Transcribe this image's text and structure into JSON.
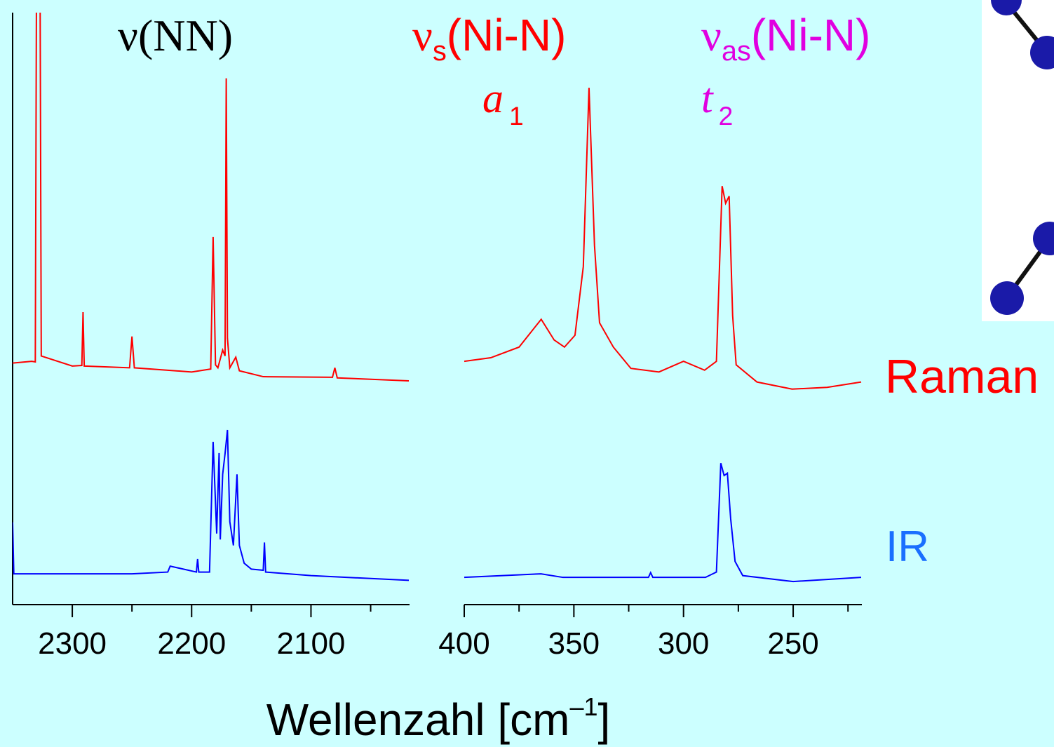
{
  "chart_data": [
    {
      "type": "line",
      "xlabel": {
        "text": "Wellenzahl [cm",
        "sup": "–1",
        "tail": "]"
      },
      "annotations": [
        {
          "text": "ν(NN)",
          "color": "#000000"
        },
        {
          "text": "ν",
          "sub": "s",
          "tail": "(Ni-N)",
          "color": "#ff0000"
        },
        {
          "text": "ν",
          "sub": "as",
          "tail": "(Ni-N)",
          "color": "#e000e0"
        },
        {
          "text": "a",
          "sub": "1",
          "color": "#ff0000"
        },
        {
          "text": "t",
          "sub": "2",
          "color": "#e000e0"
        }
      ],
      "xlim": [
        2350,
        2018
      ],
      "ylim": [
        0,
        100
      ],
      "xticks": [
        2300,
        2200,
        2100
      ],
      "xminor": [
        2250,
        2150,
        2050
      ],
      "series": [
        {
          "name": "Raman",
          "color": "#ff0000",
          "x": [
            2350,
            2334,
            2331,
            2330,
            2327,
            2326,
            2300,
            2292,
            2291,
            2290,
            2252,
            2250,
            2248,
            2200,
            2184,
            2182,
            2180,
            2178,
            2174,
            2172,
            2171,
            2170,
            2168,
            2163,
            2160,
            2140,
            2082,
            2080,
            2078,
            2018
          ],
          "values": [
            40.8,
            41.1,
            41,
            105,
            105,
            42,
            40.3,
            40.4,
            49.4,
            40.3,
            40,
            45.3,
            40,
            39.3,
            39.8,
            62.1,
            40.5,
            40,
            43,
            42,
            88.9,
            45,
            40,
            41.8,
            39.5,
            38.5,
            38.4,
            40,
            38.3,
            37.8
          ]
        },
        {
          "name": "IR",
          "color": "#0000ff",
          "x": [
            2350,
            2349,
            2300,
            2250,
            2220,
            2218,
            2196,
            2195,
            2194,
            2185,
            2182,
            2179,
            2177,
            2176,
            2174,
            2172,
            2170,
            2168,
            2165,
            2162,
            2160,
            2156,
            2150,
            2140,
            2139,
            2138,
            2100,
            2018
          ],
          "values": [
            13.9,
            5.2,
            5.2,
            5.2,
            5.5,
            6.5,
            5.5,
            7.7,
            5.5,
            5.5,
            27.5,
            12,
            25.6,
            11,
            22,
            25.5,
            29.5,
            14,
            10,
            22,
            10,
            7,
            6,
            5.8,
            10.5,
            5.5,
            4.9,
            4.1
          ]
        }
      ]
    },
    {
      "type": "line",
      "xlim": [
        400,
        219
      ],
      "ylim": [
        0,
        100
      ],
      "xticks": [
        400,
        350,
        300,
        250
      ],
      "xminor": [
        375,
        325,
        275,
        225
      ],
      "series": [
        {
          "color": "#ff0000",
          "x": [
            400,
            387.9,
            375,
            364.9,
            359,
            354.3,
            349.5,
            345.7,
            343.1,
            340.6,
            338.3,
            332,
            324,
            311.2,
            300,
            290.4,
            285,
            282.4,
            280.8,
            279.2,
            277.6,
            276,
            266.5,
            250.5,
            234.5,
            219
          ],
          "values": [
            41.1,
            41.7,
            43.5,
            48.2,
            44.7,
            43.5,
            45.5,
            57.1,
            87.3,
            60.7,
            47.6,
            43.5,
            39.9,
            39.3,
            41.1,
            39.6,
            41.1,
            70.7,
            67.8,
            69,
            48.8,
            40.5,
            37.6,
            36.4,
            36.7,
            37.6
          ]
        },
        {
          "color": "#0000ff",
          "x": [
            400,
            365,
            355,
            316,
            315,
            314,
            290,
            285,
            283,
            281.5,
            280,
            278.5,
            276.5,
            273,
            250,
            219
          ],
          "values": [
            4.6,
            5.2,
            4.6,
            4.6,
            5.4,
            4.6,
            4.6,
            5.5,
            23.9,
            21.8,
            22.2,
            14.5,
            7.3,
            4.9,
            3.9,
            4.6
          ]
        }
      ]
    }
  ]
}
